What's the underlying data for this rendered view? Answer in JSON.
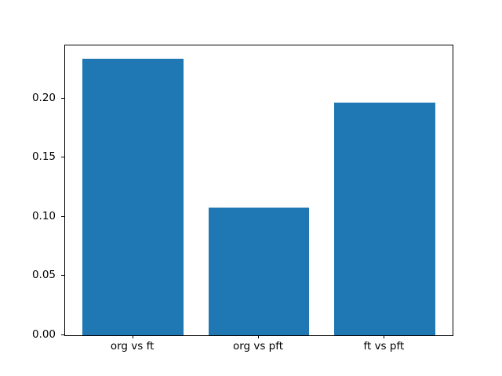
{
  "chart_data": {
    "type": "bar",
    "categories": [
      "org vs ft",
      "org vs pft",
      "ft vs pft"
    ],
    "values": [
      0.234,
      0.108,
      0.197
    ],
    "title": "",
    "xlabel": "",
    "ylabel": "",
    "ylim": [
      0,
      0.245
    ],
    "xlim": [
      -0.54,
      2.54
    ],
    "bar_width": 0.8,
    "bar_color": "#1f77b4",
    "axis_color": "#000000",
    "background_color": "#ffffff",
    "yticks": [
      0.0,
      0.05,
      0.1,
      0.15,
      0.2
    ],
    "ytick_labels": [
      "0.00",
      "0.05",
      "0.10",
      "0.15",
      "0.20"
    ],
    "grid": false,
    "legend": null
  }
}
